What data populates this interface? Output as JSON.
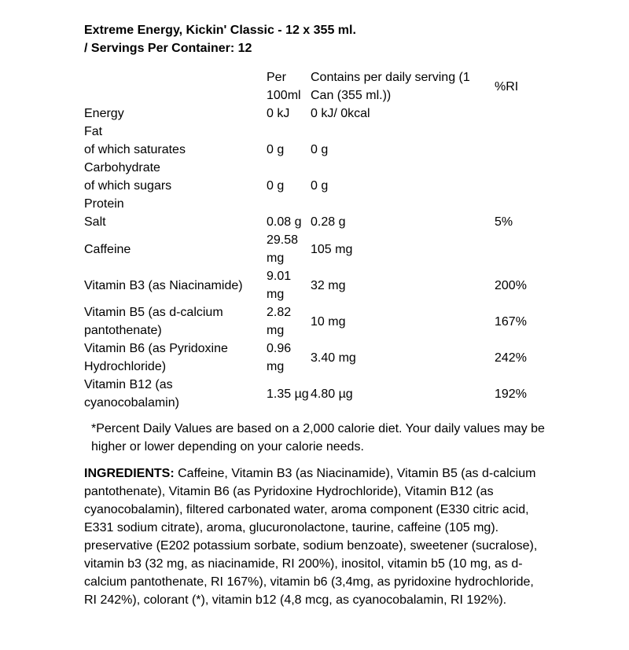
{
  "page": {
    "background_color": "#ffffff",
    "text_color": "#000000"
  },
  "header": {
    "product_title": "Extreme Energy, Kickin' Classic - 12 x 355 ml.",
    "servings_line": "/ Servings Per Container: 12"
  },
  "nutrition_table": {
    "column_headers": [
      "",
      "Per 100ml",
      "Contains per daily serving (1 Can (355 ml.))",
      "%RI"
    ],
    "rows": [
      {
        "label": "Energy",
        "per_100ml": "0 kJ",
        "per_serving": "0 kJ/ 0kcal",
        "ri": ""
      },
      {
        "label": "Fat",
        "per_100ml": "",
        "per_serving": "",
        "ri": ""
      },
      {
        "label": "of which saturates",
        "per_100ml": "0 g",
        "per_serving": "0 g",
        "ri": ""
      },
      {
        "label": "Carbohydrate",
        "per_100ml": "",
        "per_serving": "",
        "ri": ""
      },
      {
        "label": "of which sugars",
        "per_100ml": "0 g",
        "per_serving": "0 g",
        "ri": ""
      },
      {
        "label": "Protein",
        "per_100ml": "",
        "per_serving": "",
        "ri": ""
      },
      {
        "label": "Salt",
        "per_100ml": "0.08 g",
        "per_serving": "0.28 g",
        "ri": "5%"
      },
      {
        "label": "Caffeine",
        "per_100ml": "29.58 mg",
        "per_serving": "105 mg",
        "ri": ""
      },
      {
        "label": "Vitamin B3 (as Niacinamide)",
        "per_100ml": "9.01 mg",
        "per_serving": "32 mg",
        "ri": "200%"
      },
      {
        "label": "Vitamin B5 (as d-calcium pantothenate)",
        "per_100ml": "2.82 mg",
        "per_serving": "10 mg",
        "ri": "167%"
      },
      {
        "label": "Vitamin B6 (as Pyridoxine Hydrochloride)",
        "per_100ml": "0.96 mg",
        "per_serving": "3.40 mg",
        "ri": "242%"
      },
      {
        "label": "Vitamin B12 (as cyanocobalamin)",
        "per_100ml": "1.35 µg",
        "per_serving": "4.80 µg",
        "ri": "192%"
      }
    ]
  },
  "footnote": "*Percent Daily Values are based on a 2,000 calorie diet. Your daily values may be higher or lower depending on your calorie needs.",
  "ingredients": {
    "label": "INGREDIENTS:",
    "text": " Caffeine, Vitamin B3 (as Niacinamide), Vitamin B5 (as d-calcium pantothenate), Vitamin B6 (as Pyridoxine Hydrochloride), Vitamin B12 (as cyanocobalamin), filtered carbonated water, aroma component (E330 citric acid, E331 sodium citrate), aroma, glucuronolactone, taurine, caffeine (105 mg). preservative (E202 potassium sorbate, sodium benzoate), sweetener (sucralose), vitamin b3 (32 mg, as niacinamide, RI 200%), inositol, vitamin b5 (10 mg, as d-calcium pantothenate, RI 167%), vitamin b6 (3,4mg, as pyridoxine hydrochloride, RI 242%), colorant (*), vitamin b12 (4,8 mcg, as cyanocobalamin, RI 192%)."
  }
}
